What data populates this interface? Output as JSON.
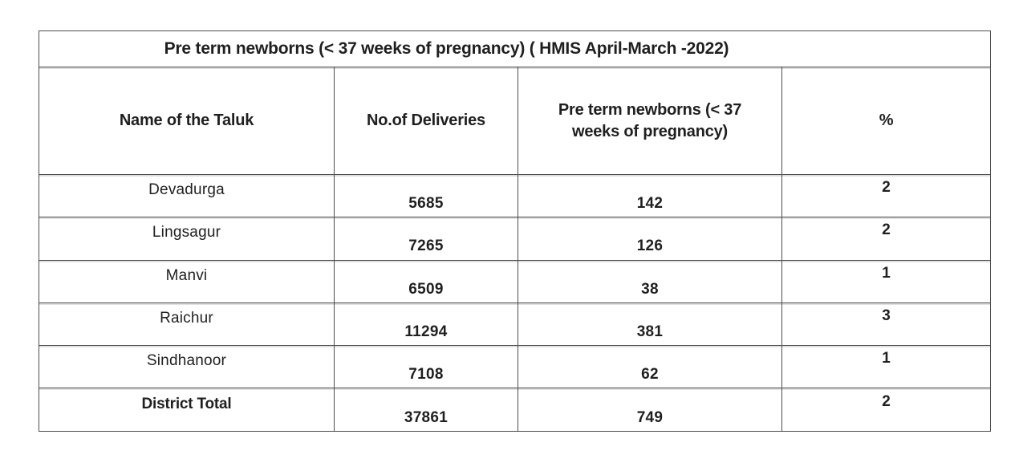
{
  "page": {
    "title": "Pre term newborns (< 37 weeks of pregnancy) ( HMIS April-March -2022)"
  },
  "table": {
    "columns": [
      "Name of the Taluk",
      "No.of Deliveries",
      "Pre term newborns (< 37 weeks of pregnancy)",
      "%"
    ],
    "rows": [
      {
        "taluk": "Devadurga",
        "deliveries": "5685",
        "preterm": "142",
        "pct": "2",
        "is_total": false
      },
      {
        "taluk": "Lingsagur",
        "deliveries": "7265",
        "preterm": "126",
        "pct": "2",
        "is_total": false
      },
      {
        "taluk": "Manvi",
        "deliveries": "6509",
        "preterm": "38",
        "pct": "1",
        "is_total": false
      },
      {
        "taluk": "Raichur",
        "deliveries": "11294",
        "preterm": "381",
        "pct": "3",
        "is_total": false
      },
      {
        "taluk": "Sindhanoor",
        "deliveries": "7108",
        "preterm": "62",
        "pct": "1",
        "is_total": false
      },
      {
        "taluk": "District Total",
        "deliveries": "37861",
        "preterm": "749",
        "pct": "2",
        "is_total": true
      }
    ],
    "colors": {
      "border": "#4d4d4d",
      "text": "#1f1f1f",
      "background": "#ffffff"
    }
  }
}
